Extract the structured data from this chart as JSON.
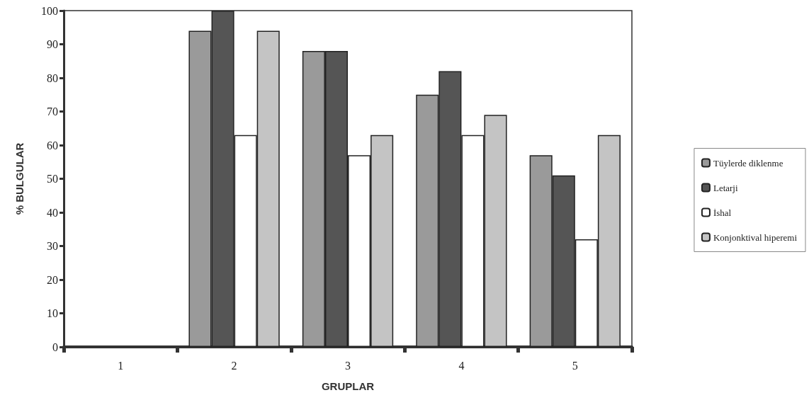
{
  "chart_data": {
    "type": "bar",
    "xlabel": "GRUPLAR",
    "ylabel": "% BULGULAR",
    "categories": [
      "1",
      "2",
      "3",
      "4",
      "5"
    ],
    "series": [
      {
        "name": "Tüylerde diklenme",
        "color": "#9a9a9a",
        "values": [
          null,
          94,
          88,
          75,
          57
        ]
      },
      {
        "name": "Letarji",
        "color": "#555555",
        "values": [
          null,
          100,
          88,
          82,
          51
        ]
      },
      {
        "name": "İshal",
        "color": "#ffffff",
        "values": [
          null,
          63,
          57,
          63,
          32
        ]
      },
      {
        "name": "Konjonktival hiperemi",
        "color": "#c4c4c4",
        "values": [
          null,
          94,
          63,
          69,
          63
        ]
      }
    ],
    "ylim": [
      0,
      100
    ],
    "yticks": [
      0,
      10,
      20,
      30,
      40,
      50,
      60,
      70,
      80,
      90,
      100
    ],
    "grid": false,
    "legend": "right"
  }
}
